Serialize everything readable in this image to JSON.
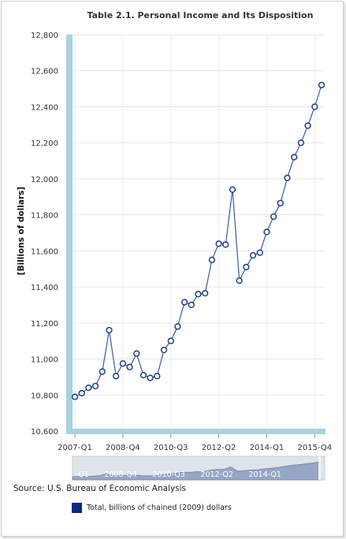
{
  "source": "Source: U.S. Bureau of Economic Analysis",
  "legend_label": "Total, billions of chained (2009) dollars",
  "colors": {
    "line": "#3a5a9f",
    "marker_fill": "#ffffff",
    "marker_stroke": "#1f3f87",
    "legend_swatch": "#0b2a87",
    "axis_band": "#a9d2e0",
    "navigator_fill": "#97a6c6",
    "navigator_bg": "#dfe3ea"
  },
  "chart_data": {
    "type": "line",
    "title": "Table 2.1. Personal Income and Its Disposition",
    "ylabel": "[Billions of dollars]",
    "xlabel": "",
    "ylim": [
      10600,
      12800
    ],
    "yticks": [
      10600,
      10800,
      11000,
      11200,
      11400,
      11600,
      11800,
      12000,
      12200,
      12400,
      12600,
      12800
    ],
    "ytick_labels": [
      "10,600",
      "10,800",
      "11,000",
      "11,200",
      "11,400",
      "11,600",
      "11,800",
      "12,000",
      "12,200",
      "12,400",
      "12,600",
      "12,800"
    ],
    "xticks": [
      {
        "index": 0,
        "label": "2007-Q1"
      },
      {
        "index": 7,
        "label": "2008-Q4"
      },
      {
        "index": 14,
        "label": "2010-Q3"
      },
      {
        "index": 21,
        "label": "2012-Q2"
      },
      {
        "index": 28,
        "label": "2014-Q1"
      },
      {
        "index": 35,
        "label": "2015-Q4"
      }
    ],
    "navigator_labels": [
      "-Q1",
      "2008-Q4",
      "2010-Q3",
      "2012-Q2",
      "2014-Q1"
    ],
    "grid": true,
    "legend_position": "bottom",
    "series": [
      {
        "name": "Total, billions of chained (2009) dollars",
        "values": [
          10790,
          10810,
          10840,
          10850,
          10930,
          11160,
          10905,
          10975,
          10955,
          11030,
          10910,
          10895,
          10905,
          11050,
          11100,
          11180,
          11315,
          11300,
          11360,
          11365,
          11550,
          11640,
          11635,
          11940,
          11435,
          11510,
          11575,
          11590,
          11705,
          11790,
          11865,
          12005,
          12120,
          12200,
          12295,
          12400,
          12520
        ]
      }
    ]
  }
}
